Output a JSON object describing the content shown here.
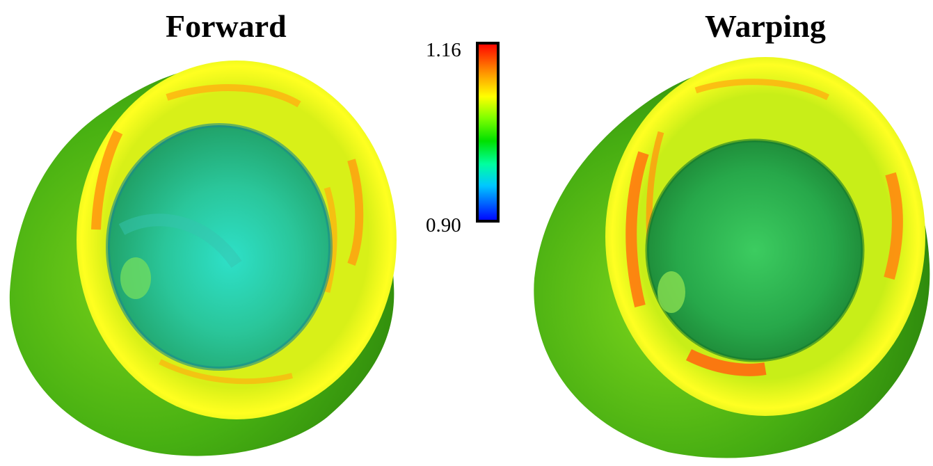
{
  "panels": {
    "left_title": "Forward",
    "right_title": "Warping"
  },
  "colorbar": {
    "max_label": "1.16",
    "min_label": "0.90",
    "max_value": 1.16,
    "min_value": 0.9,
    "colors": [
      "#0000ff",
      "#00c8ff",
      "#00ffa0",
      "#00e000",
      "#80ff00",
      "#ffff00",
      "#ffa000",
      "#ff0000"
    ]
  },
  "surface_colors": {
    "outer_green": "#3cab10",
    "rim_yellow": "#f2f21a",
    "hot_orange": "#ff9010",
    "inner_cyan": "#22d3aa",
    "inner_green": "#36b848"
  }
}
